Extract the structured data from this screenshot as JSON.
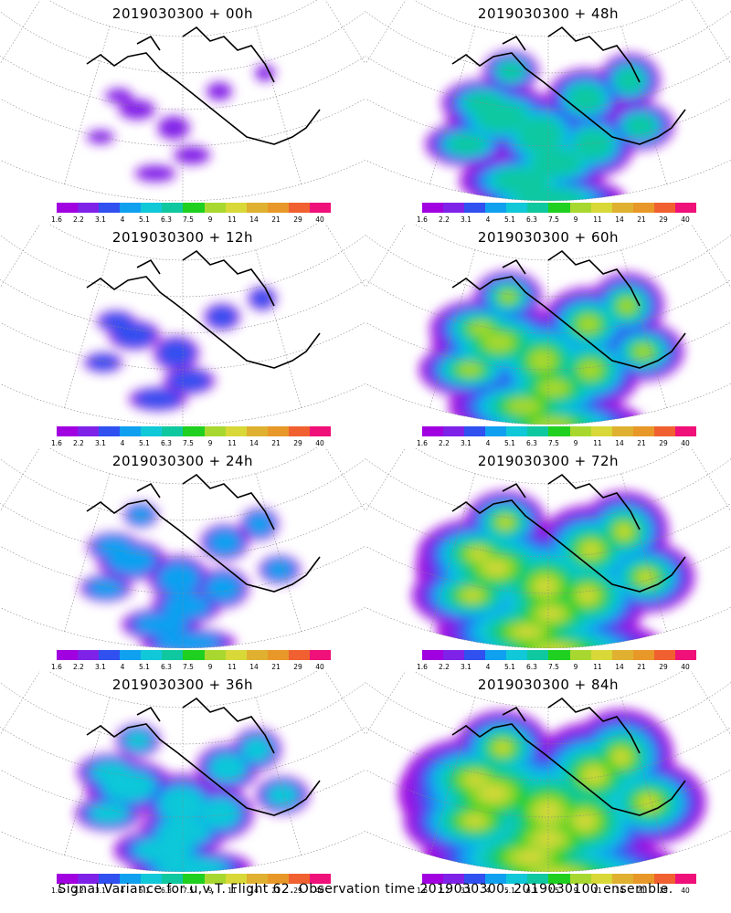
{
  "colorbar": {
    "labels": [
      "1.6",
      "2.2",
      "3.1",
      "4",
      "5.1",
      "6.3",
      "7.5",
      "9",
      "11",
      "14",
      "21",
      "29",
      "40"
    ],
    "colors": [
      "#a100e0",
      "#7f22e8",
      "#3050f0",
      "#10a0f0",
      "#10c8d8",
      "#10c8a0",
      "#20d020",
      "#a8d830",
      "#d8d838",
      "#e0b030",
      "#e89828",
      "#f06030",
      "#f0107a"
    ]
  },
  "panels": [
    {
      "title": "2019030300 + 00h",
      "intensity": 0
    },
    {
      "title": "2019030300 + 48h",
      "intensity": 4
    },
    {
      "title": "2019030300 + 12h",
      "intensity": 1
    },
    {
      "title": "2019030300 + 60h",
      "intensity": 5
    },
    {
      "title": "2019030300 + 24h",
      "intensity": 2
    },
    {
      "title": "2019030300 + 72h",
      "intensity": 6
    },
    {
      "title": "2019030300 + 36h",
      "intensity": 3
    },
    {
      "title": "2019030300 + 84h",
      "intensity": 7
    }
  ],
  "caption": "Signal Variance for u,v,T. Flight 62. Observation time 2019030300. 2019030100 ensemble."
}
